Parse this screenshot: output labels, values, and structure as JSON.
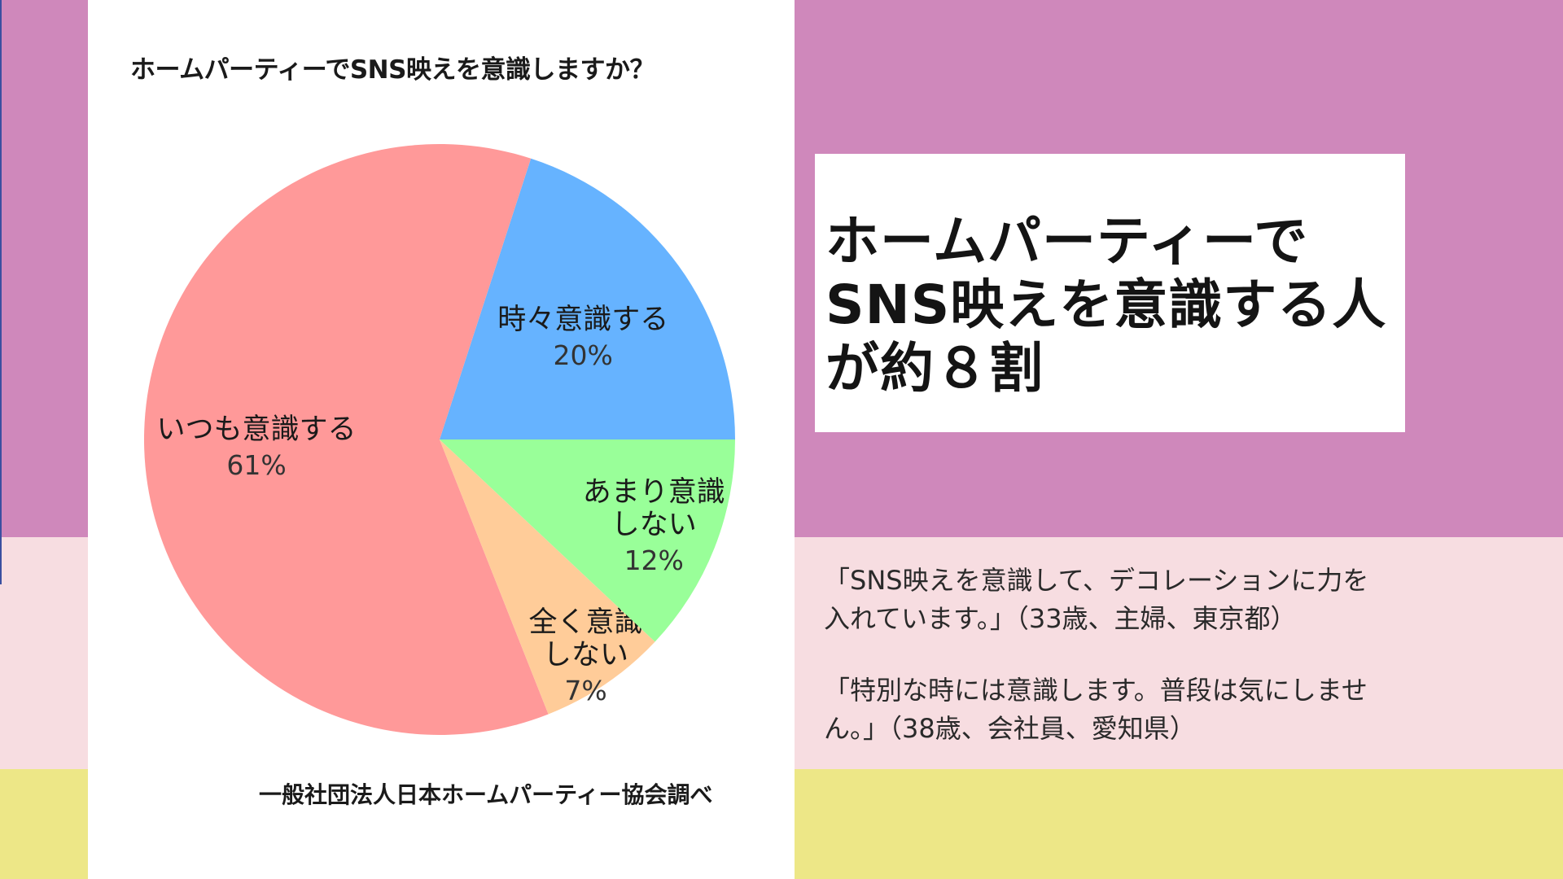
{
  "colors": {
    "band_top": "#cf88bb",
    "band_mid": "#f7dde1",
    "band_bottom": "#ede787",
    "panel": "#ffffff"
  },
  "chart_data": {
    "type": "pie",
    "title": "ホームパーティーでSNS映えを意識しますか？",
    "slices": [
      {
        "label_lines": [
          "時々意識する"
        ],
        "value": 20,
        "pct_label": "20%",
        "color": "#66b3ff"
      },
      {
        "label_lines": [
          "いつも意識する"
        ],
        "value": 61,
        "pct_label": "61%",
        "color": "#ff9999"
      },
      {
        "label_lines": [
          "全く意識",
          "しない"
        ],
        "value": 7,
        "pct_label": "7%",
        "color": "#ffcc99"
      },
      {
        "label_lines": [
          "あまり意識",
          "しない"
        ],
        "value": 12,
        "pct_label": "12%",
        "color": "#99ff99"
      }
    ],
    "source": "一般社団法人日本ホームパーティー協会調べ"
  },
  "headline": {
    "lines": [
      "ホームパーティーで",
      "SNS映えを意識する人",
      "が約８割"
    ]
  },
  "quotes": [
    {
      "lines": [
        "「SNS映えを意識して、デコレーションに力を",
        "入れています。」（33歳、主婦、東京都）"
      ]
    },
    {
      "lines": [
        "「特別な時には意識します。普段は気にしませ",
        "ん。」（38歳、会社員、愛知県）"
      ]
    }
  ]
}
